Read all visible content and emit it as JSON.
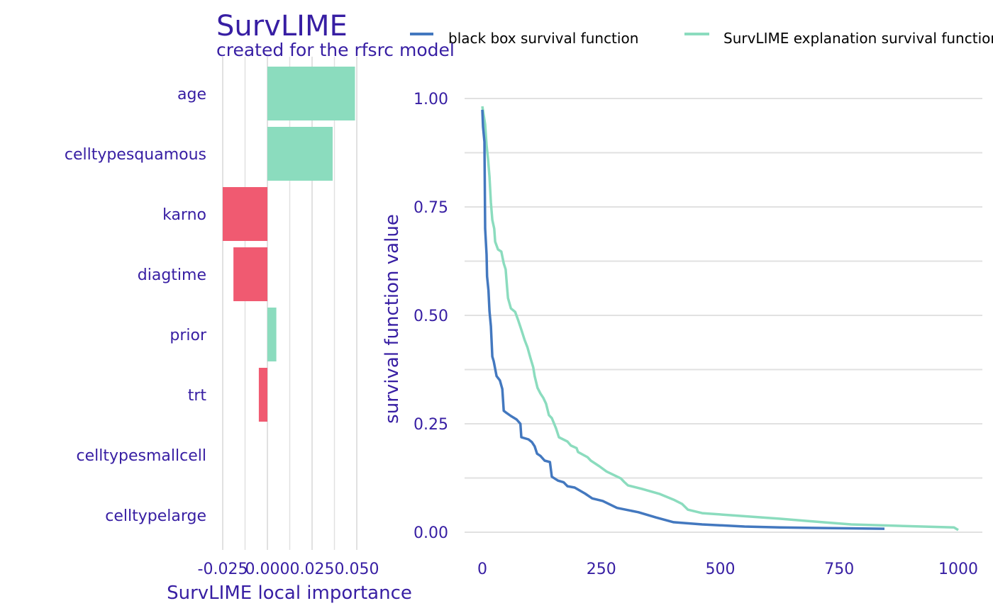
{
  "title": "SurvLIME",
  "subtitle": "created for the rfsrc model",
  "colors": {
    "text": "#371ea3",
    "positive": "#8bdcbe",
    "negative": "#f05a71",
    "blackbox": "#4378bf",
    "explanation": "#8bdcbe",
    "grid": "#e1e1e1"
  },
  "chart_data": [
    {
      "type": "bar",
      "orientation": "horizontal",
      "categories": [
        "age",
        "celltypesquamous",
        "karno",
        "diagtime",
        "prior",
        "trt",
        "celltypesmallcell",
        "celltypelarge"
      ],
      "values": [
        0.049,
        0.0365,
        -0.025,
        -0.019,
        0.005,
        -0.0048,
        0,
        0
      ],
      "xlabel": "SurvLIME local importance",
      "ylabel": "",
      "xlim": [
        -0.025,
        0.05
      ],
      "xticks": [
        -0.025,
        0,
        0.025,
        0.05
      ],
      "xtick_labels": [
        "-0.025",
        "0.000",
        "0.025",
        "0.050"
      ],
      "grid": true
    },
    {
      "type": "line",
      "xlabel": "",
      "ylabel": "survival function value",
      "xlim": [
        0,
        1000
      ],
      "ylim": [
        0,
        1
      ],
      "xticks": [
        0,
        250,
        500,
        750,
        1000
      ],
      "xtick_labels": [
        "0",
        "250",
        "500",
        "750",
        "1000"
      ],
      "yticks": [
        0,
        0.25,
        0.5,
        0.75,
        1
      ],
      "ytick_labels": [
        "0.00",
        "0.25",
        "0.50",
        "0.75",
        "1.00"
      ],
      "grid": true,
      "legend_position": "top",
      "series": [
        {
          "name": "black box survival function",
          "x": [
            0,
            1.5,
            4.5,
            6,
            9,
            10,
            13,
            15,
            18,
            21,
            24,
            30,
            37,
            42,
            45,
            51,
            60,
            72,
            80,
            82,
            97,
            104,
            110,
            115,
            122,
            131,
            142,
            146,
            159,
            171,
            179,
            194,
            216,
            231,
            253,
            283,
            306,
            328,
            365,
            402,
            462,
            551,
            626,
            845
          ],
          "y": [
            0.974,
            0.935,
            0.9,
            0.7,
            0.64,
            0.59,
            0.557,
            0.51,
            0.475,
            0.405,
            0.394,
            0.36,
            0.35,
            0.33,
            0.28,
            0.275,
            0.268,
            0.26,
            0.25,
            0.219,
            0.214,
            0.208,
            0.198,
            0.181,
            0.176,
            0.165,
            0.162,
            0.128,
            0.119,
            0.115,
            0.106,
            0.103,
            0.089,
            0.078,
            0.072,
            0.056,
            0.051,
            0.046,
            0.034,
            0.023,
            0.018,
            0.013,
            0.011,
            0.008
          ]
        },
        {
          "name": "SurvLIME explanation survival function",
          "x": [
            0,
            6,
            9,
            12,
            15,
            18,
            21,
            25,
            27,
            33,
            40,
            45,
            49,
            52,
            54,
            60,
            69,
            75,
            82,
            89,
            95,
            101,
            107,
            110,
            116,
            122,
            128,
            134,
            140,
            146,
            155,
            161,
            179,
            186,
            198,
            201,
            221,
            228,
            246,
            261,
            276,
            291,
            298,
            306,
            335,
            373,
            402,
            420,
            432,
            462,
            626,
            715,
            775,
            991,
            1000
          ],
          "y": [
            0.982,
            0.94,
            0.892,
            0.86,
            0.82,
            0.76,
            0.72,
            0.7,
            0.67,
            0.652,
            0.647,
            0.62,
            0.606,
            0.565,
            0.54,
            0.516,
            0.508,
            0.49,
            0.467,
            0.443,
            0.426,
            0.402,
            0.38,
            0.36,
            0.333,
            0.32,
            0.31,
            0.296,
            0.27,
            0.263,
            0.239,
            0.219,
            0.209,
            0.2,
            0.194,
            0.185,
            0.173,
            0.165,
            0.152,
            0.14,
            0.132,
            0.124,
            0.116,
            0.108,
            0.1,
            0.088,
            0.075,
            0.065,
            0.052,
            0.044,
            0.031,
            0.023,
            0.018,
            0.011,
            0.005
          ]
        }
      ]
    }
  ]
}
